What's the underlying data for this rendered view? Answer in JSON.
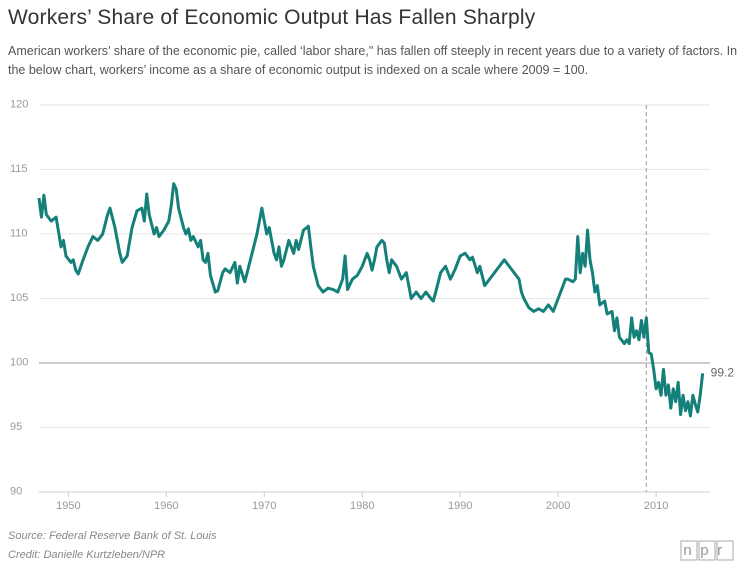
{
  "chart_data": {
    "type": "line",
    "title": "Workers’ Share of Economic Output Has Fallen Sharply",
    "subtitle": "American workers’ share of the economic pie, called ‘labor share,\" has fallen off steeply in recent years due to a variety of factors. In the below chart, workers’ income as a share of economic output is indexed on a scale where 2009 = 100.",
    "source": "Source: Federal Reserve Bank of St. Louis",
    "credit": "Credit: Danielle Kurtzleben/NPR",
    "logo": "npr",
    "color": "#15807a",
    "xlim": [
      1947,
      2015.5
    ],
    "xticks": [
      1950,
      1960,
      1970,
      1980,
      1990,
      2000,
      2010
    ],
    "ylim": [
      90,
      120
    ],
    "yticks": [
      90,
      95,
      100,
      105,
      110,
      115,
      120
    ],
    "grid": true,
    "hline": 100,
    "vline": 2009,
    "x": [
      1947,
      1947.25,
      1947.5,
      1947.75,
      1948.25,
      1948.75,
      1949.25,
      1949.5,
      1949.75,
      1950.25,
      1950.5,
      1950.75,
      1951,
      1951.5,
      1952,
      1952.5,
      1953,
      1953.5,
      1954,
      1954.25,
      1954.75,
      1955.25,
      1955.5,
      1956,
      1956.5,
      1957,
      1957.5,
      1957.75,
      1958,
      1958.25,
      1958.75,
      1959,
      1959.25,
      1959.75,
      1960.25,
      1960.5,
      1960.75,
      1961,
      1961.25,
      1961.75,
      1962,
      1962.25,
      1962.5,
      1962.75,
      1963.25,
      1963.5,
      1963.75,
      1964,
      1964.25,
      1964.5,
      1965,
      1965.25,
      1965.75,
      1966,
      1966.5,
      1967,
      1967.25,
      1967.5,
      1968,
      1968.25,
      1968.75,
      1969.25,
      1969.75,
      1970,
      1970.25,
      1970.5,
      1971,
      1971.25,
      1971.5,
      1971.75,
      1972,
      1972.5,
      1973,
      1973.25,
      1973.5,
      1974,
      1974.5,
      1974.75,
      1975,
      1975.5,
      1976,
      1976.5,
      1977,
      1977.5,
      1978,
      1978.25,
      1978.5,
      1979,
      1979.5,
      1980,
      1980.5,
      1980.75,
      1981,
      1981.25,
      1981.5,
      1982,
      1982.25,
      1982.5,
      1982.75,
      1983,
      1983.5,
      1984,
      1984.5,
      1985,
      1985.5,
      1986,
      1986.5,
      1987,
      1987.25,
      1987.5,
      1988,
      1988.5,
      1989,
      1989.5,
      1990,
      1990.5,
      1991,
      1991.25,
      1991.75,
      1992,
      1992.5,
      1993,
      1993.5,
      1994,
      1994.5,
      1995,
      1995.5,
      1996,
      1996.25,
      1996.5,
      1997,
      1997.5,
      1998,
      1998.5,
      1999,
      1999.5,
      2000,
      2000.5,
      2000.75,
      2001,
      2001.5,
      2001.75,
      2002,
      2002.25,
      2002.5,
      2002.75,
      2003,
      2003.25,
      2003.5,
      2003.75,
      2004,
      2004.25,
      2004.75,
      2005,
      2005.5,
      2005.75,
      2006,
      2006.25,
      2006.75,
      2007,
      2007.25,
      2007.5,
      2007.75,
      2008,
      2008.25,
      2008.5,
      2008.75,
      2009,
      2009.25,
      2009.5,
      2009.75,
      2010,
      2010.25,
      2010.5,
      2010.75,
      2011,
      2011.25,
      2011.5,
      2011.75,
      2012,
      2012.25,
      2012.5,
      2012.75,
      2013,
      2013.25,
      2013.5,
      2013.75,
      2014,
      2014.25,
      2014.5,
      2014.75
    ],
    "values": [
      112.8,
      111.3,
      113.0,
      111.5,
      111.0,
      111.3,
      109.0,
      109.5,
      108.3,
      107.8,
      108.0,
      107.2,
      106.9,
      108.0,
      109.0,
      109.8,
      109.5,
      110.0,
      111.5,
      112.0,
      110.5,
      108.5,
      107.8,
      108.3,
      110.5,
      111.8,
      112.0,
      111.0,
      113.1,
      111.5,
      110.0,
      110.5,
      109.8,
      110.3,
      111.0,
      112.2,
      113.9,
      113.5,
      112.0,
      110.5,
      110.0,
      110.4,
      109.5,
      109.8,
      109.0,
      109.5,
      108.0,
      107.8,
      108.5,
      106.8,
      105.5,
      105.6,
      107.0,
      107.3,
      107.0,
      107.8,
      106.2,
      107.5,
      106.3,
      107.0,
      108.5,
      110.0,
      112.0,
      111.0,
      110.0,
      110.5,
      108.5,
      108.0,
      109.0,
      107.5,
      108.0,
      109.5,
      108.5,
      109.5,
      108.8,
      110.3,
      110.6,
      109.0,
      107.5,
      106.0,
      105.5,
      105.8,
      105.7,
      105.5,
      106.5,
      108.3,
      105.7,
      106.5,
      106.8,
      107.5,
      108.5,
      108.0,
      107.2,
      108.0,
      109.0,
      109.5,
      109.3,
      108.0,
      107.0,
      108.0,
      107.5,
      106.5,
      107.0,
      105.0,
      105.5,
      105.0,
      105.5,
      105.0,
      104.8,
      105.5,
      107.0,
      107.5,
      106.5,
      107.3,
      108.3,
      108.5,
      108.0,
      108.2,
      107.0,
      107.5,
      106.0,
      106.5,
      107.0,
      107.5,
      108.0,
      107.5,
      107.0,
      106.5,
      105.5,
      105.0,
      104.3,
      104.0,
      104.2,
      104.0,
      104.5,
      104.0,
      105.0,
      106.0,
      106.5,
      106.5,
      106.3,
      106.5,
      109.8,
      107.0,
      108.5,
      107.5,
      110.3,
      108.0,
      107.0,
      105.5,
      106.0,
      104.5,
      104.8,
      103.8,
      104.0,
      102.5,
      103.5,
      102.0,
      101.5,
      101.8,
      101.5,
      103.5,
      102.0,
      102.5,
      101.8,
      103.3,
      102.0,
      103.5,
      100.8,
      100.7,
      99.5,
      98.0,
      98.5,
      97.5,
      99.5,
      97.5,
      98.3,
      96.5,
      98.0,
      97.0,
      98.5,
      96.0,
      97.5,
      96.3,
      97.0,
      95.9,
      97.5,
      96.8,
      96.2,
      97.5,
      99.2
    ]
  }
}
